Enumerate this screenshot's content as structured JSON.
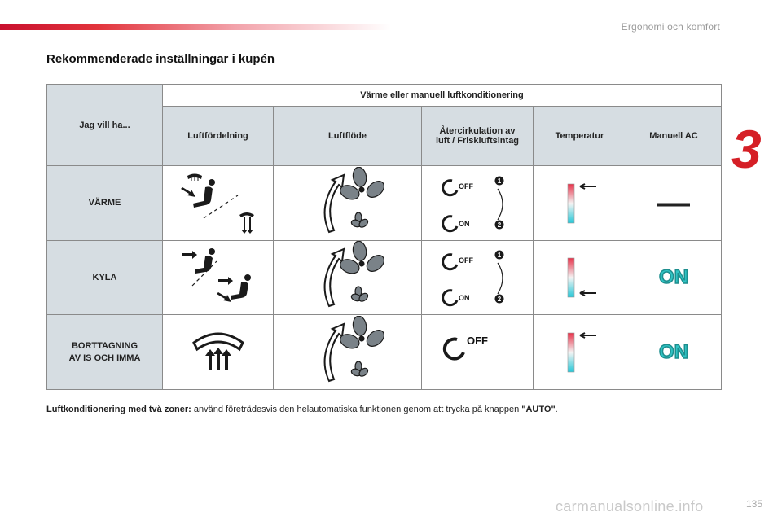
{
  "header": {
    "section": "Ergonomi och komfort",
    "chapter": "3"
  },
  "title": "Rekommenderade inställningar i kupén",
  "table": {
    "corner": "Jag vill ha...",
    "group_header": "Värme eller manuell luftkonditionering",
    "columns": [
      "Luftfördelning",
      "Luftflöde",
      "Återcirkulation av luft / Friskluftsintag",
      "Temperatur",
      "Manuell AC"
    ],
    "rows": [
      {
        "label": "VÄRME",
        "recirc": [
          "OFF",
          "ON"
        ],
        "steps": [
          "1",
          "2"
        ],
        "ac_dash": "—"
      },
      {
        "label": "KYLA",
        "recirc": [
          "OFF",
          "ON"
        ],
        "steps": [
          "1",
          "2"
        ],
        "ac": "ON"
      },
      {
        "label_lines": [
          "BORTTAGNING",
          "AV IS OCH IMMA"
        ],
        "recirc": [
          "OFF"
        ],
        "ac": "ON"
      }
    ]
  },
  "footnote": {
    "bold": "Luftkonditionering med två zoner:",
    "text": " använd företrädesvis den helautomatiska funktionen genom att trycka på knappen ",
    "button": "\"AUTO\"",
    "end": "."
  },
  "page_number": "135",
  "watermark": "carmanualsonline.info",
  "colors": {
    "accent": "#d51f26",
    "header_fill": "#d6dde2",
    "ac_on": "#2fc4c4"
  }
}
